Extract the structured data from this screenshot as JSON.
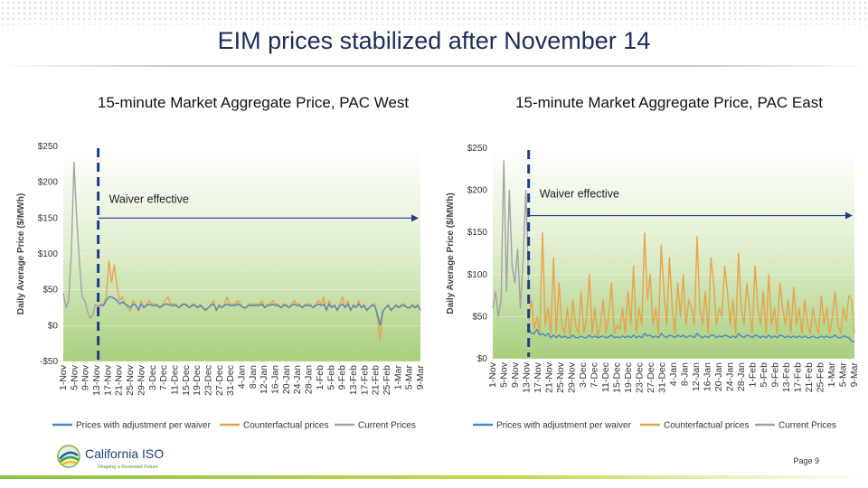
{
  "slide": {
    "title": "EIM prices stabilized after November 14",
    "page": "Page 9"
  },
  "logo": {
    "name": "California ISO",
    "tagline": "Shaping a Renewed Future"
  },
  "colors": {
    "adjusted": "#4a86c2",
    "counterfactual": "#e8a34a",
    "current": "#a3a3a3",
    "marker": "#1f3d8a",
    "plot_bg_top": "#ffffff",
    "plot_bg_bottom": "#a9cf7e",
    "title": "#1d2c5c"
  },
  "chart_data": [
    {
      "type": "line",
      "title": "15-minute Market Aggregate Price, PAC West",
      "ylabel": "Daily Average Price ($/MWh)",
      "ylim": [
        -50,
        250
      ],
      "yticks": [
        -50,
        0,
        50,
        100,
        150,
        200,
        250
      ],
      "ytick_labels": [
        "-$50",
        "$0",
        "$50",
        "$100",
        "$150",
        "$200",
        "$250"
      ],
      "x_tick_labels": [
        "1-Nov",
        "5-Nov",
        "9-Nov",
        "13-Nov",
        "17-Nov",
        "21-Nov",
        "25-Nov",
        "29-Nov",
        "3-Dec",
        "7-Dec",
        "11-Dec",
        "15-Dec",
        "19-Dec",
        "23-Dec",
        "27-Dec",
        "31-Dec",
        "4-Jan",
        "8-Jan",
        "12-Jan",
        "16-Jan",
        "20-Jan",
        "24-Jan",
        "28-Jan",
        "1-Feb",
        "5-Feb",
        "9-Feb",
        "13-Feb",
        "17-Feb",
        "21-Feb",
        "25-Feb",
        "1-Mar",
        "5-Mar",
        "9-Mar"
      ],
      "annotation": "Waiver effective",
      "waiver_index": 13,
      "legend": [
        "Prices with adjustment per waiver",
        "Counterfactual prices",
        "Current Prices"
      ],
      "legend_position": "bottom",
      "series": [
        {
          "name": "Current Prices",
          "values": [
            45,
            25,
            35,
            100,
            228,
            150,
            90,
            40,
            35,
            20,
            10,
            15,
            30,
            25
          ]
        },
        {
          "name": "Counterfactual prices",
          "values": [
            null,
            null,
            null,
            null,
            null,
            null,
            null,
            null,
            null,
            null,
            null,
            null,
            null,
            25,
            30,
            30,
            40,
            90,
            60,
            85,
            55,
            35,
            40,
            30,
            25,
            20,
            35,
            30,
            20,
            35,
            25,
            30,
            35,
            30,
            30,
            30,
            25,
            30,
            35,
            40,
            30,
            30,
            30,
            25,
            30,
            30,
            30,
            25,
            30,
            30,
            25,
            30,
            25,
            20,
            25,
            30,
            35,
            20,
            30,
            25,
            30,
            40,
            30,
            30,
            30,
            35,
            30,
            25,
            25,
            30,
            30,
            30,
            30,
            30,
            35,
            25,
            30,
            30,
            35,
            30,
            30,
            25,
            30,
            30,
            25,
            30,
            35,
            30,
            30,
            25,
            30,
            30,
            30,
            25,
            30,
            35,
            30,
            40,
            20,
            35,
            25,
            30,
            20,
            30,
            40,
            25,
            35,
            20,
            30,
            25,
            35,
            25,
            30,
            20,
            25,
            30,
            30,
            10,
            -20,
            20,
            25,
            30,
            20,
            25,
            30,
            25,
            30,
            30,
            25,
            25,
            30,
            25,
            30,
            20
          ]
        },
        {
          "name": "Prices with adjustment per waiver",
          "values": [
            null,
            null,
            null,
            null,
            null,
            null,
            null,
            null,
            null,
            null,
            null,
            null,
            null,
            28,
            28,
            28,
            35,
            40,
            40,
            38,
            35,
            30,
            33,
            30,
            28,
            25,
            30,
            28,
            22,
            30,
            25,
            28,
            30,
            28,
            28,
            28,
            25,
            28,
            30,
            30,
            28,
            28,
            28,
            25,
            28,
            30,
            28,
            25,
            28,
            28,
            25,
            28,
            25,
            22,
            25,
            28,
            30,
            22,
            28,
            25,
            28,
            30,
            28,
            28,
            28,
            30,
            28,
            25,
            25,
            28,
            28,
            28,
            28,
            28,
            30,
            25,
            28,
            28,
            30,
            28,
            28,
            25,
            28,
            28,
            25,
            28,
            30,
            28,
            28,
            25,
            28,
            28,
            28,
            25,
            28,
            30,
            28,
            30,
            22,
            30,
            25,
            28,
            22,
            28,
            30,
            25,
            30,
            22,
            28,
            25,
            30,
            25,
            28,
            22,
            25,
            28,
            28,
            15,
            0,
            20,
            25,
            28,
            22,
            25,
            28,
            25,
            28,
            28,
            25,
            25,
            28,
            25,
            28,
            22
          ]
        }
      ]
    },
    {
      "type": "line",
      "title": "15-minute Market Aggregate Price, PAC East",
      "ylabel": "Daily Average Price ($/MWh)",
      "ylim": [
        0,
        250
      ],
      "yticks": [
        0,
        50,
        100,
        150,
        200,
        250
      ],
      "ytick_labels": [
        "$0",
        "$50",
        "$100",
        "$150",
        "$200",
        "$250"
      ],
      "x_tick_labels": [
        "1-Nov",
        "5-Nov",
        "9-Nov",
        "13-Nov",
        "17-Nov",
        "21-Nov",
        "25-Nov",
        "29-Nov",
        "3-Dec",
        "7-Dec",
        "11-Dec",
        "15-Dec",
        "19-Dec",
        "23-Dec",
        "27-Dec",
        "31-Dec",
        "4-Jan",
        "8-Jan",
        "12-Jan",
        "16-Jan",
        "20-Jan",
        "24-Jan",
        "28-Jan",
        "1-Feb",
        "5-Feb",
        "9-Feb",
        "13-Feb",
        "17-Feb",
        "21-Feb",
        "25-Feb",
        "1-Mar",
        "5-Mar",
        "9-Mar"
      ],
      "annotation": "Waiver effective",
      "waiver_index": 13,
      "legend": [
        "Prices with adjustment per waiver",
        "Counterfactual prices",
        "Current Prices"
      ],
      "legend_position": "bottom",
      "series": [
        {
          "name": "Current Prices",
          "values": [
            60,
            80,
            50,
            70,
            235,
            80,
            200,
            110,
            90,
            130,
            60,
            120,
            200,
            90
          ]
        },
        {
          "name": "Counterfactual prices",
          "values": [
            null,
            null,
            null,
            null,
            null,
            null,
            null,
            null,
            null,
            null,
            null,
            null,
            null,
            45,
            70,
            35,
            50,
            30,
            150,
            40,
            60,
            30,
            120,
            30,
            90,
            40,
            30,
            60,
            25,
            70,
            40,
            30,
            80,
            30,
            50,
            100,
            30,
            60,
            25,
            40,
            70,
            30,
            50,
            90,
            30,
            40,
            35,
            60,
            30,
            80,
            40,
            110,
            30,
            60,
            40,
            150,
            70,
            100,
            40,
            60,
            30,
            135,
            80,
            40,
            120,
            60,
            30,
            90,
            50,
            100,
            40,
            70,
            60,
            40,
            145,
            60,
            40,
            80,
            30,
            120,
            90,
            40,
            60,
            50,
            110,
            80,
            40,
            70,
            30,
            125,
            60,
            40,
            90,
            60,
            30,
            110,
            60,
            40,
            80,
            30,
            100,
            40,
            60,
            30,
            90,
            60,
            40,
            70,
            30,
            85,
            40,
            60,
            30,
            70,
            40,
            30,
            60,
            40,
            30,
            75,
            40,
            60,
            30,
            50,
            80,
            40,
            30,
            60,
            45,
            75,
            70,
            30
          ]
        },
        {
          "name": "Prices with adjustment per waiver",
          "values": [
            null,
            null,
            null,
            null,
            null,
            null,
            null,
            null,
            null,
            null,
            null,
            null,
            null,
            35,
            30,
            30,
            35,
            28,
            30,
            27,
            30,
            25,
            28,
            25,
            28,
            25,
            27,
            25,
            25,
            28,
            25,
            25,
            27,
            25,
            25,
            28,
            25,
            27,
            25,
            26,
            27,
            25,
            26,
            28,
            25,
            26,
            25,
            27,
            25,
            27,
            25,
            28,
            25,
            27,
            25,
            30,
            27,
            28,
            25,
            27,
            25,
            30,
            27,
            25,
            28,
            27,
            25,
            28,
            26,
            28,
            25,
            27,
            27,
            25,
            30,
            27,
            25,
            27,
            25,
            28,
            28,
            25,
            27,
            26,
            28,
            27,
            25,
            27,
            25,
            30,
            27,
            25,
            28,
            27,
            25,
            28,
            27,
            25,
            27,
            25,
            28,
            25,
            27,
            25,
            28,
            27,
            25,
            27,
            25,
            27,
            25,
            27,
            25,
            27,
            25,
            25,
            27,
            25,
            25,
            27,
            25,
            27,
            25,
            26,
            28,
            25,
            25,
            27,
            26,
            25,
            21,
            20
          ]
        }
      ]
    }
  ]
}
